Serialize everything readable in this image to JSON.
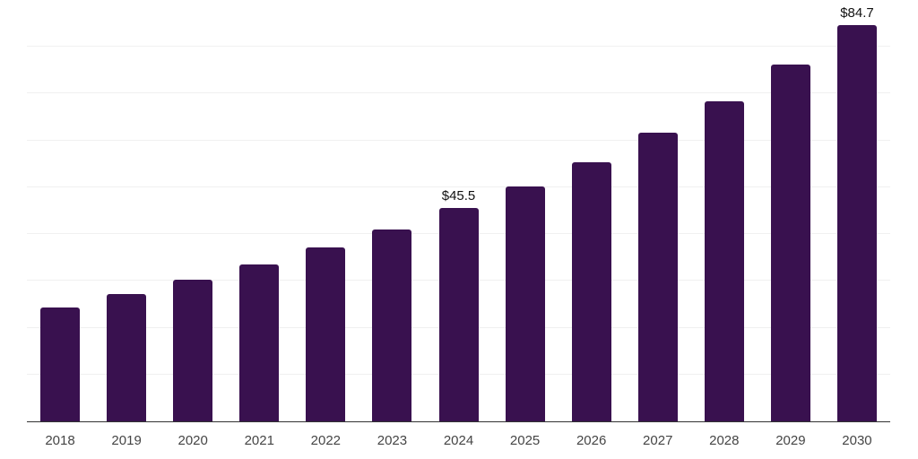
{
  "chart_data": {
    "type": "bar",
    "title": "",
    "xlabel": "",
    "ylabel": "",
    "categories": [
      "2018",
      "2019",
      "2020",
      "2021",
      "2022",
      "2023",
      "2024",
      "2025",
      "2026",
      "2027",
      "2028",
      "2029",
      "2030"
    ],
    "values": [
      24.4,
      27.2,
      30.3,
      33.6,
      37.2,
      41.0,
      45.5,
      50.1,
      55.4,
      61.7,
      68.4,
      76.2,
      84.7
    ],
    "data_labels": {
      "2024": "$45.5",
      "2030": "$84.7"
    },
    "ylim": [
      0,
      90
    ],
    "gridline_step": 10,
    "grid": "horizontal-only",
    "y_axis_tick_labels_visible": false,
    "legend_position": "none",
    "colors": {
      "bar": "#39114f",
      "gridline": "#f0f0f0",
      "axis_line": "#333333",
      "x_tick_label": "#454545",
      "data_label": "#111111",
      "background": "#ffffff"
    }
  }
}
